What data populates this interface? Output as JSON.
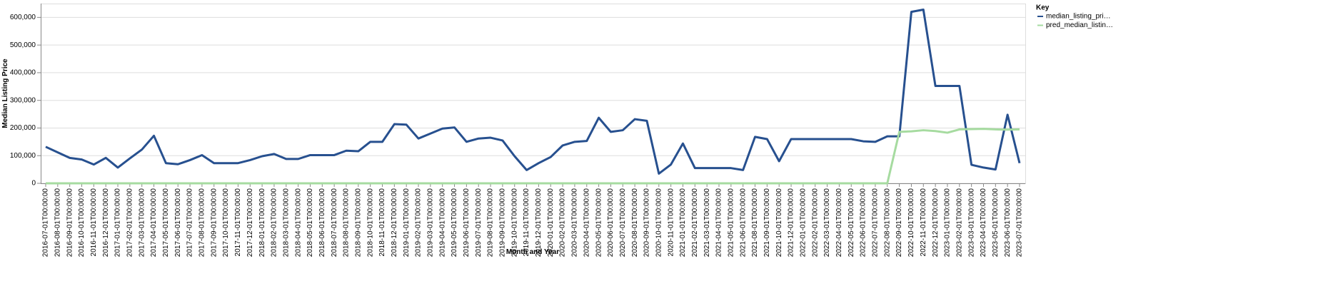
{
  "chart_data": {
    "type": "line",
    "x_label": "Month and Year",
    "y_label": "Median Listing Price",
    "legend_title": "Key",
    "legend_position": "right",
    "grid": true,
    "categories": [
      "2016-07-01T00:00:00",
      "2016-08-01T00:00:00",
      "2016-09-01T00:00:00",
      "2016-10-01T00:00:00",
      "2016-11-01T00:00:00",
      "2016-12-01T00:00:00",
      "2017-01-01T00:00:00",
      "2017-02-01T00:00:00",
      "2017-03-01T00:00:00",
      "2017-04-01T00:00:00",
      "2017-05-01T00:00:00",
      "2017-06-01T00:00:00",
      "2017-07-01T00:00:00",
      "2017-08-01T00:00:00",
      "2017-09-01T00:00:00",
      "2017-10-01T00:00:00",
      "2017-11-01T00:00:00",
      "2017-12-01T00:00:00",
      "2018-01-01T00:00:00",
      "2018-02-01T00:00:00",
      "2018-03-01T00:00:00",
      "2018-04-01T00:00:00",
      "2018-05-01T00:00:00",
      "2018-06-01T00:00:00",
      "2018-07-01T00:00:00",
      "2018-08-01T00:00:00",
      "2018-09-01T00:00:00",
      "2018-10-01T00:00:00",
      "2018-11-01T00:00:00",
      "2018-12-01T00:00:00",
      "2019-01-01T00:00:00",
      "2019-02-01T00:00:00",
      "2019-03-01T00:00:00",
      "2019-04-01T00:00:00",
      "2019-05-01T00:00:00",
      "2019-06-01T00:00:00",
      "2019-07-01T00:00:00",
      "2019-08-01T00:00:00",
      "2019-09-01T00:00:00",
      "2019-10-01T00:00:00",
      "2019-11-01T00:00:00",
      "2019-12-01T00:00:00",
      "2020-01-01T00:00:00",
      "2020-02-01T00:00:00",
      "2020-03-01T00:00:00",
      "2020-04-01T00:00:00",
      "2020-05-01T00:00:00",
      "2020-06-01T00:00:00",
      "2020-07-01T00:00:00",
      "2020-08-01T00:00:00",
      "2020-09-01T00:00:00",
      "2020-10-01T00:00:00",
      "2020-11-01T00:00:00",
      "2021-01-01T00:00:00",
      "2021-02-01T00:00:00",
      "2021-03-01T00:00:00",
      "2021-04-01T00:00:00",
      "2021-05-01T00:00:00",
      "2021-06-01T00:00:00",
      "2021-08-01T00:00:00",
      "2021-09-01T00:00:00",
      "2021-10-01T00:00:00",
      "2021-12-01T00:00:00",
      "2022-01-01T00:00:00",
      "2022-02-01T00:00:00",
      "2022-03-01T00:00:00",
      "2022-04-01T00:00:00",
      "2022-05-01T00:00:00",
      "2022-06-01T00:00:00",
      "2022-07-01T00:00:00",
      "2022-08-01T00:00:00",
      "2022-09-01T00:00:00",
      "2022-10-01T00:00:00",
      "2022-11-01T00:00:00",
      "2022-12-01T00:00:00",
      "2023-01-01T00:00:00",
      "2023-02-01T00:00:00",
      "2023-03-01T00:00:00",
      "2023-04-01T00:00:00",
      "2023-05-01T00:00:00",
      "2023-06-01T00:00:00",
      "2023-07-01T00:00:00"
    ],
    "series": [
      {
        "name": "median_listing_pri…",
        "color": "#27508f",
        "values": [
          132000,
          112000,
          92000,
          86000,
          68000,
          92000,
          57000,
          90000,
          122000,
          172000,
          73000,
          69000,
          84000,
          102000,
          73000,
          73000,
          73000,
          84000,
          98000,
          106000,
          88000,
          88000,
          102000,
          102000,
          102000,
          118000,
          116000,
          150000,
          150000,
          214000,
          212000,
          162000,
          180000,
          198000,
          202000,
          150000,
          162000,
          165000,
          155000,
          98000,
          48000,
          73000,
          95000,
          137000,
          150000,
          153000,
          237000,
          186000,
          192000,
          232000,
          226000,
          35000,
          68000,
          144000,
          55000,
          55000,
          55000,
          55000,
          48000,
          168000,
          160000,
          80000,
          160000,
          160000,
          160000,
          160000,
          160000,
          160000,
          152000,
          150000,
          170000,
          170000,
          620000,
          628000,
          352000,
          352000,
          352000,
          67000,
          57000,
          50000,
          248000,
          73000
        ]
      },
      {
        "name": "pred_median_listin…",
        "color": "#a6dba0",
        "values": [
          0,
          0,
          0,
          0,
          0,
          0,
          0,
          0,
          0,
          0,
          0,
          0,
          0,
          0,
          0,
          0,
          0,
          0,
          0,
          0,
          0,
          0,
          0,
          0,
          0,
          0,
          0,
          0,
          0,
          0,
          0,
          0,
          0,
          0,
          0,
          0,
          0,
          0,
          0,
          0,
          0,
          0,
          0,
          0,
          0,
          0,
          0,
          0,
          0,
          0,
          0,
          0,
          0,
          0,
          0,
          0,
          0,
          0,
          0,
          0,
          0,
          0,
          0,
          0,
          0,
          0,
          0,
          0,
          0,
          0,
          0,
          186000,
          188000,
          192000,
          189000,
          183000,
          195000,
          196000,
          197000,
          195000,
          194000,
          195000
        ]
      }
    ],
    "ylim": [
      0,
      650000
    ],
    "yticks": [
      {
        "value": 0,
        "label": "0"
      },
      {
        "value": 100000,
        "label": "100,000"
      },
      {
        "value": 200000,
        "label": "200,000"
      },
      {
        "value": 300000,
        "label": "300,000"
      },
      {
        "value": 400000,
        "label": "400,000"
      },
      {
        "value": 500000,
        "label": "500,000"
      },
      {
        "value": 600000,
        "label": "600,000"
      }
    ]
  }
}
